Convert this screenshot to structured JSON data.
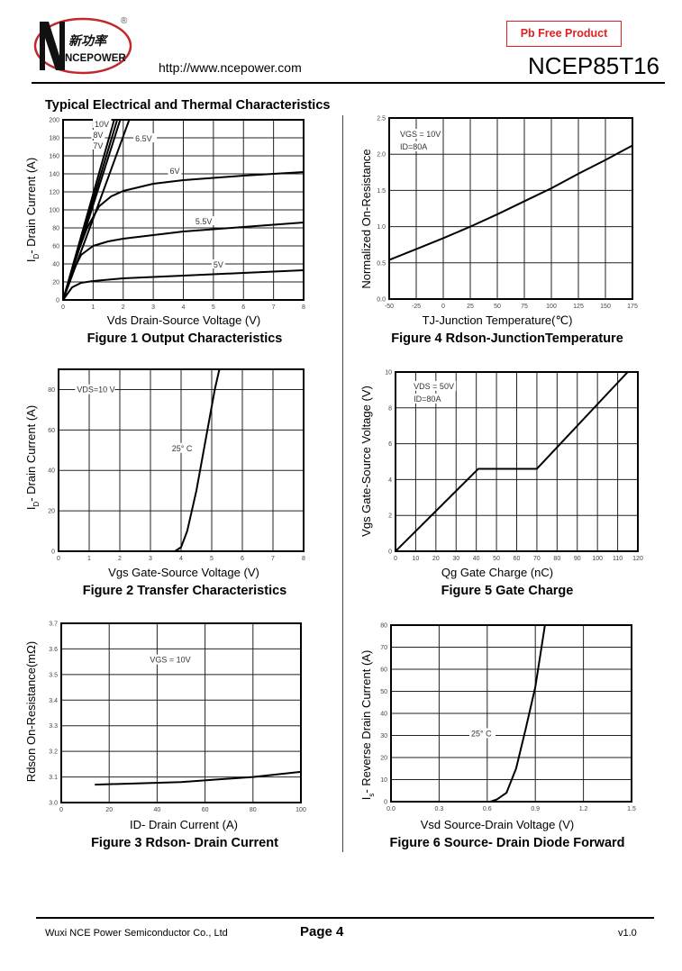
{
  "header": {
    "logo_text_cn": "新功率",
    "logo_text": "NCEPOWER",
    "logo_mark": "®",
    "url": "http://www.ncepower.com",
    "badge": "Pb Free Product",
    "part_number": "NCEP85T16"
  },
  "section_title": "Typical Electrical and Thermal Characteristics",
  "footer": {
    "company": "Wuxi NCE Power Semiconductor Co., Ltd",
    "page": "Page 4",
    "version": "v1.0"
  },
  "colors": {
    "badge": "#dd2222",
    "logo_ring": "#c0282d",
    "line": "#000000"
  },
  "chart_data": [
    {
      "type": "line",
      "caption": "Figure 1 Output Characteristics",
      "xlabel": "Vds Drain-Source Voltage (V)",
      "ylabel": {
        "main": "I",
        "sub": "D",
        "rest": "- Drain Current (A)"
      },
      "xlim": [
        0,
        8
      ],
      "ylim": [
        0,
        200
      ],
      "grid": true,
      "x_ticks": [
        "0",
        "1",
        "2",
        "3",
        "4",
        "5",
        "6",
        "7",
        "8"
      ],
      "y_ticks": [
        "0",
        "20",
        "40",
        "60",
        "80",
        "100",
        "120",
        "140",
        "160",
        "180",
        "200"
      ],
      "series": [
        {
          "name": "10V",
          "points": [
            [
              0,
              0
            ],
            [
              1.7,
              200
            ]
          ],
          "label_at": [
            1.05,
            194
          ]
        },
        {
          "name": "8V",
          "points": [
            [
              0,
              0
            ],
            [
              1.8,
              200
            ]
          ],
          "label_at": [
            1.0,
            182
          ]
        },
        {
          "name": "7V",
          "points": [
            [
              0,
              0
            ],
            [
              1.9,
              200
            ]
          ],
          "label_at": [
            1.0,
            170
          ]
        },
        {
          "name": "6.5V",
          "points": [
            [
              0,
              0
            ],
            [
              1,
              90
            ],
            [
              2.2,
              200
            ]
          ],
          "label_at": [
            2.4,
            178
          ]
        },
        {
          "name": "6V",
          "points": [
            [
              0,
              0
            ],
            [
              0.4,
              45
            ],
            [
              0.8,
              80
            ],
            [
              1.2,
              104
            ],
            [
              1.6,
              115
            ],
            [
              2,
              121
            ],
            [
              3,
              129
            ],
            [
              4,
              133
            ],
            [
              6,
              138
            ],
            [
              8,
              142
            ]
          ],
          "label_at": [
            3.55,
            142
          ]
        },
        {
          "name": "5.5V",
          "points": [
            [
              0,
              0
            ],
            [
              0.3,
              30
            ],
            [
              0.6,
              50
            ],
            [
              1,
              60
            ],
            [
              1.5,
              65
            ],
            [
              2,
              68
            ],
            [
              3,
              72
            ],
            [
              4,
              76
            ],
            [
              6,
              81
            ],
            [
              8,
              86
            ]
          ],
          "label_at": [
            4.4,
            86
          ]
        },
        {
          "name": "5V",
          "points": [
            [
              0,
              0
            ],
            [
              0.3,
              14
            ],
            [
              0.6,
              19
            ],
            [
              1,
              21
            ],
            [
              2,
              24
            ],
            [
              4,
              27
            ],
            [
              6,
              30
            ],
            [
              8,
              33
            ]
          ],
          "label_at": [
            5,
            38
          ]
        }
      ],
      "annotations": []
    },
    {
      "type": "line",
      "caption": "Figure 4 Rdson-JunctionTemperature",
      "xlabel": "TJ-Junction Temperature(℃)",
      "ylabel": {
        "main": "Normalized On-Resistance",
        "sub": "",
        "rest": ""
      },
      "xlim": [
        -50,
        175
      ],
      "ylim": [
        0,
        2.5
      ],
      "grid": true,
      "x_ticks": [
        "-50",
        "-25",
        "0",
        "25",
        "50",
        "75",
        "100",
        "125",
        "150",
        "175"
      ],
      "y_ticks": [
        "0.0",
        "0.5",
        "1.0",
        "1.5",
        "2.0",
        "2.5"
      ],
      "series": [
        {
          "points": [
            [
              -50,
              0.54
            ],
            [
              -25,
              0.69
            ],
            [
              0,
              0.84
            ],
            [
              25,
              1.0
            ],
            [
              50,
              1.17
            ],
            [
              75,
              1.35
            ],
            [
              100,
              1.53
            ],
            [
              125,
              1.73
            ],
            [
              150,
              1.92
            ],
            [
              175,
              2.12
            ]
          ]
        }
      ],
      "annotations": [
        {
          "text": "VGS = 10V",
          "at": [
            -40,
            2.25
          ]
        },
        {
          "text": "ID=80A",
          "at": [
            -40,
            2.08
          ]
        }
      ]
    },
    {
      "type": "line",
      "caption": "Figure 2 Transfer Characteristics",
      "xlabel": "Vgs Gate-Source Voltage (V)",
      "ylabel": {
        "main": "I",
        "sub": "D",
        "rest": "- Drain Current (A)"
      },
      "xlim": [
        0,
        8
      ],
      "ylim": [
        0,
        90
      ],
      "grid": true,
      "x_ticks": [
        "0",
        "1",
        "2",
        "3",
        "4",
        "5",
        "6",
        "7",
        "8"
      ],
      "y_ticks": [
        "0",
        "20",
        "40",
        "60",
        "80"
      ],
      "series": [
        {
          "points": [
            [
              3.8,
              0
            ],
            [
              4.0,
              2
            ],
            [
              4.2,
              10
            ],
            [
              4.5,
              30
            ],
            [
              4.8,
              55
            ],
            [
              5.1,
              80
            ],
            [
              5.25,
              90
            ]
          ]
        }
      ],
      "annotations": [
        {
          "text": "VDS=10 V",
          "at": [
            0.6,
            79
          ]
        },
        {
          "text": "25° C",
          "at": [
            3.7,
            50
          ]
        }
      ]
    },
    {
      "type": "line",
      "caption": "Figure 5 Gate Charge",
      "xlabel": "Qg Gate Charge (nC)",
      "ylabel": {
        "main": "Vgs Gate-Source Voltage (V)",
        "sub": "",
        "rest": ""
      },
      "xlim": [
        0,
        120
      ],
      "ylim": [
        0,
        10
      ],
      "grid": true,
      "x_ticks": [
        "0",
        "10",
        "20",
        "30",
        "40",
        "50",
        "60",
        "70",
        "80",
        "90",
        "100",
        "110",
        "120"
      ],
      "y_ticks": [
        "0",
        "2",
        "4",
        "6",
        "8",
        "10"
      ],
      "series": [
        {
          "points": [
            [
              0,
              0
            ],
            [
              41,
              4.6
            ],
            [
              70,
              4.6
            ],
            [
              115,
              10
            ]
          ]
        }
      ],
      "annotations": [
        {
          "text": "VDS = 50V",
          "at": [
            9,
            9.1
          ]
        },
        {
          "text": "ID=80A",
          "at": [
            9,
            8.4
          ]
        }
      ]
    },
    {
      "type": "line",
      "caption": "Figure 3 Rdson- Drain Current",
      "xlabel": "ID- Drain Current (A)",
      "ylabel": {
        "main": "Rdson On-Resistance(mΩ)",
        "sub": "",
        "rest": ""
      },
      "xlim": [
        0,
        100
      ],
      "ylim": [
        3.0,
        3.7
      ],
      "grid": true,
      "x_ticks": [
        "0",
        "20",
        "40",
        "60",
        "80",
        "100"
      ],
      "y_ticks": [
        "3.0",
        "3.1",
        "3.2",
        "3.3",
        "3.4",
        "3.5",
        "3.6",
        "3.7"
      ],
      "series": [
        {
          "points": [
            [
              14,
              3.07
            ],
            [
              50,
              3.08
            ],
            [
              80,
              3.1
            ],
            [
              100,
              3.12
            ]
          ]
        }
      ],
      "annotations": [
        {
          "text": "VGS = 10V",
          "at": [
            37,
            3.55
          ]
        }
      ]
    },
    {
      "type": "line",
      "caption": "Figure 6 Source- Drain Diode Forward",
      "xlabel": "Vsd Source-Drain Voltage (V)",
      "ylabel": {
        "main": "I",
        "sub": "s",
        "rest": "- Reverse Drain Current (A)"
      },
      "xlim": [
        0,
        1.5
      ],
      "ylim": [
        0,
        80
      ],
      "grid": true,
      "x_ticks": [
        "0.0",
        "0.3",
        "0.6",
        "0.9",
        "1.2",
        "1.5"
      ],
      "y_ticks": [
        "0",
        "10",
        "20",
        "30",
        "40",
        "50",
        "60",
        "70",
        "80"
      ],
      "series": [
        {
          "points": [
            [
              0.62,
              0
            ],
            [
              0.66,
              1
            ],
            [
              0.72,
              4
            ],
            [
              0.78,
              15
            ],
            [
              0.84,
              33
            ],
            [
              0.9,
              52
            ],
            [
              0.96,
              80
            ]
          ]
        }
      ],
      "annotations": [
        {
          "text": "25° C",
          "at": [
            0.5,
            30
          ]
        }
      ]
    }
  ]
}
